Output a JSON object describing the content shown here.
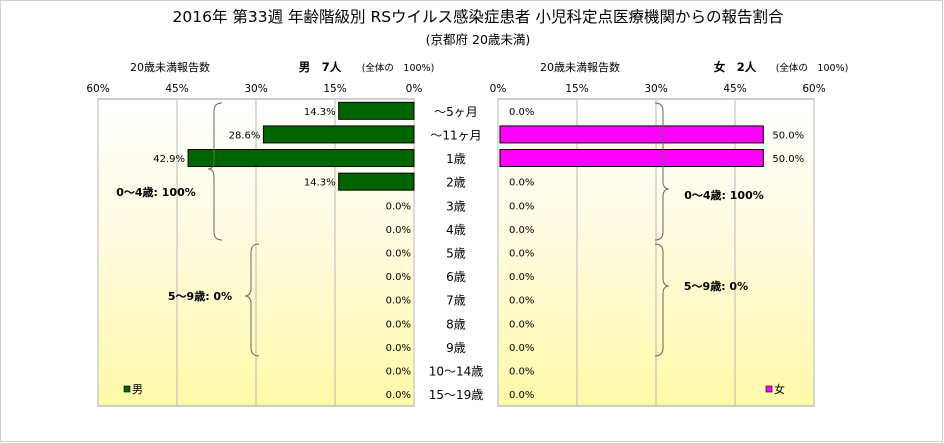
{
  "chart_data": {
    "type": "bar",
    "title": "2016年 第33週 年齢階級別 RSウイルス感染症患者 小児科定点医療機関からの報告割合",
    "subtitle": "(京都府 20歳未満)",
    "categories": [
      "～5ヶ月",
      "～11ヶ月",
      "1歳",
      "2歳",
      "3歳",
      "4歳",
      "5歳",
      "6歳",
      "7歳",
      "8歳",
      "9歳",
      "10～14歳",
      "15～19歳"
    ],
    "male": {
      "header_left": "20歳未満報告数",
      "header_name": "男　7人",
      "header_total": "(全体の　100%)",
      "legend": "男",
      "color": "#006400",
      "values": [
        14.3,
        28.6,
        42.9,
        14.3,
        0,
        0,
        0,
        0,
        0,
        0,
        0,
        0,
        0
      ],
      "labels": [
        "14.3%",
        "28.6%",
        "42.9%",
        "14.3%",
        "0.0%",
        "0.0%",
        "0.0%",
        "0.0%",
        "0.0%",
        "0.0%",
        "0.0%",
        "0.0%",
        "0.0%"
      ],
      "ticks": [
        "60%",
        "45%",
        "30%",
        "15%",
        "0%"
      ],
      "xlim": [
        0,
        60
      ],
      "annotation_04": "0～4歳: 100%",
      "annotation_59": "5～9歳: 0%"
    },
    "female": {
      "header_left": "20歳未満報告数",
      "header_name": "女　2人",
      "header_total": "(全体の　100%)",
      "legend": "女",
      "color": "#ff00ff",
      "values": [
        0,
        50,
        50,
        0,
        0,
        0,
        0,
        0,
        0,
        0,
        0,
        0,
        0
      ],
      "labels": [
        "0.0%",
        "50.0%",
        "50.0%",
        "0.0%",
        "0.0%",
        "0.0%",
        "0.0%",
        "0.0%",
        "0.0%",
        "0.0%",
        "0.0%",
        "0.0%",
        "0.0%"
      ],
      "ticks": [
        "0%",
        "15%",
        "30%",
        "45%",
        "60%"
      ],
      "xlim": [
        0,
        60
      ],
      "annotation_04": "0～4歳: 100%",
      "annotation_59": "5～9歳: 0%"
    },
    "grid": true,
    "legend_placement": "bottom-left / bottom-right"
  }
}
